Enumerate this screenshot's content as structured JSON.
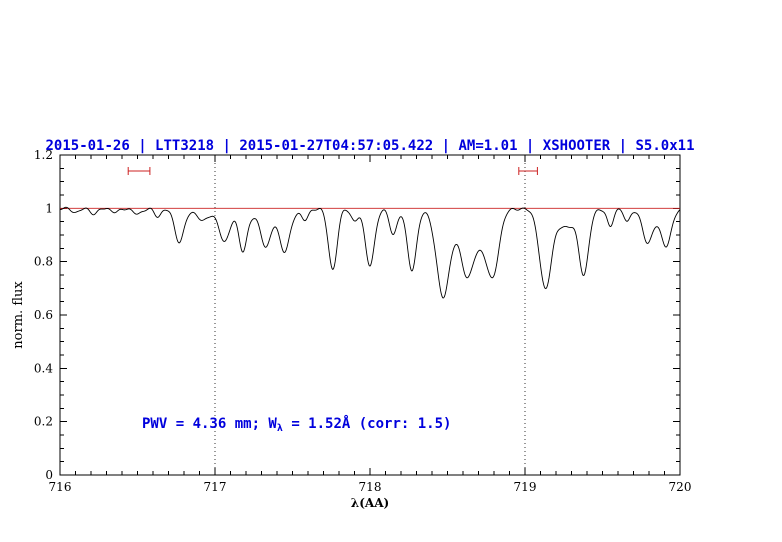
{
  "title": "2015-01-26 | LTT3218 | 2015-01-27T04:57:05.422 | AM=1.01 | XSHOOTER | S5.0x11",
  "colors": {
    "blue": "#0000dd",
    "red": "#cc2222",
    "black": "#000000"
  },
  "axes": {
    "xlabel": "λ(AA)",
    "ylabel": "norm. flux"
  },
  "annotation": {
    "pre": "PWV = 4.36 mm; W",
    "sub": "λ",
    "post": " = 1.52Å (corr: 1.5)"
  },
  "chart_data": {
    "type": "line",
    "title": "2015-01-26 | LTT3218 | 2015-01-27T04:57:05.422 | AM=1.01 | XSHOOTER | S5.0x11",
    "xlabel": "λ(AA)",
    "ylabel": "norm. flux",
    "xlim": [
      716,
      720
    ],
    "ylim": [
      0,
      1.2
    ],
    "x_ticks": [
      716,
      717,
      718,
      719,
      720
    ],
    "y_ticks": [
      0,
      0.2,
      0.4,
      0.6,
      0.8,
      1,
      1.2
    ],
    "x_minor_step": 0.1,
    "y_minor_step": 0.05,
    "grid": false,
    "continuum_level": 1.0,
    "vlines": [
      717,
      719
    ],
    "range_markers": {
      "flux": 1.14,
      "ranges": [
        [
          716.44,
          716.58
        ],
        [
          718.96,
          719.08
        ]
      ]
    },
    "absorption_lines": [
      {
        "center": 716.1,
        "depth": 0.015,
        "sigma": 0.025
      },
      {
        "center": 716.22,
        "depth": 0.02,
        "sigma": 0.025
      },
      {
        "center": 716.36,
        "depth": 0.015,
        "sigma": 0.025
      },
      {
        "center": 716.5,
        "depth": 0.022,
        "sigma": 0.028
      },
      {
        "center": 716.63,
        "depth": 0.03,
        "sigma": 0.022
      },
      {
        "center": 716.77,
        "depth": 0.12,
        "sigma": 0.03
      },
      {
        "center": 716.92,
        "depth": 0.03,
        "sigma": 0.025
      },
      {
        "center": 717.0,
        "depth": 0.02,
        "sigma": 0.15
      },
      {
        "center": 717.06,
        "depth": 0.1,
        "sigma": 0.03
      },
      {
        "center": 717.18,
        "depth": 0.13,
        "sigma": 0.025
      },
      {
        "center": 717.3,
        "depth": 0.03,
        "sigma": 0.15
      },
      {
        "center": 717.33,
        "depth": 0.115,
        "sigma": 0.03
      },
      {
        "center": 717.45,
        "depth": 0.145,
        "sigma": 0.033
      },
      {
        "center": 717.58,
        "depth": 0.04,
        "sigma": 0.022
      },
      {
        "center": 717.76,
        "depth": 0.23,
        "sigma": 0.028
      },
      {
        "center": 717.9,
        "depth": 0.05,
        "sigma": 0.022
      },
      {
        "center": 718.0,
        "depth": 0.215,
        "sigma": 0.03
      },
      {
        "center": 718.15,
        "depth": 0.1,
        "sigma": 0.024
      },
      {
        "center": 718.27,
        "depth": 0.23,
        "sigma": 0.03
      },
      {
        "center": 718.47,
        "depth": 0.29,
        "sigma": 0.04
      },
      {
        "center": 718.6,
        "depth": 0.08,
        "sigma": 0.12
      },
      {
        "center": 718.63,
        "depth": 0.18,
        "sigma": 0.04
      },
      {
        "center": 718.71,
        "depth": 0.05,
        "sigma": 0.03
      },
      {
        "center": 718.79,
        "depth": 0.24,
        "sigma": 0.04
      },
      {
        "center": 719.13,
        "depth": 0.27,
        "sigma": 0.036
      },
      {
        "center": 719.25,
        "depth": 0.07,
        "sigma": 0.1
      },
      {
        "center": 719.38,
        "depth": 0.22,
        "sigma": 0.03
      },
      {
        "center": 719.55,
        "depth": 0.07,
        "sigma": 0.02
      },
      {
        "center": 719.66,
        "depth": 0.05,
        "sigma": 0.02
      },
      {
        "center": 719.79,
        "depth": 0.11,
        "sigma": 0.03
      },
      {
        "center": 719.85,
        "depth": 0.03,
        "sigma": 0.08
      },
      {
        "center": 719.91,
        "depth": 0.12,
        "sigma": 0.032
      }
    ]
  }
}
